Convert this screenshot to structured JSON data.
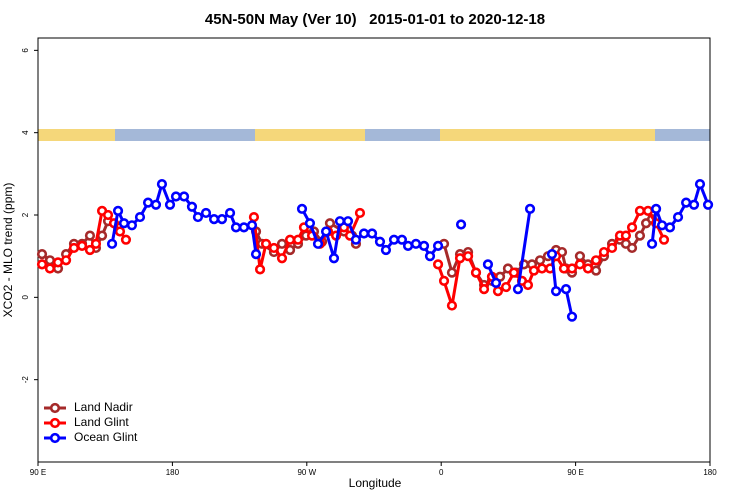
{
  "chart_data": {
    "type": "line",
    "title": "45N-50N May (Ver 10)   2015-01-01 to 2020-12-18",
    "x_label": "Longitude",
    "y_label": "XCO2 - MLO trend (ppm)",
    "xlim": [
      90,
      540
    ],
    "ylim": [
      -4,
      6.3
    ],
    "xticks": [
      {
        "value": 90,
        "label": "90 E"
      },
      180,
      {
        "value": 270,
        "label": "90 W"
      },
      {
        "value": 360,
        "label": "0"
      },
      {
        "value": 450,
        "label": "90 E"
      },
      {
        "value": 540,
        "label": "180"
      }
    ],
    "yticks": [
      -2,
      0,
      2,
      4,
      6
    ],
    "legend": "bottomleft",
    "series": [
      {
        "name": "Land Nadir",
        "color": "#a52a2a",
        "x": [
          92.7,
          98.0,
          103.4,
          108.8,
          114.1,
          119.5,
          124.8,
          128.8,
          132.9,
          136.9,
          143.6,
          null,
          236.0,
          240.0,
          248.0,
          253.4,
          258.8,
          264.1,
          269.5,
          274.8,
          280.2,
          285.5,
          294.9,
          300.3,
          302.9,
          null,
          361.9,
          367.2,
          372.6,
          378.0,
          383.3,
          388.7,
          394.0,
          399.4,
          404.7,
          410.1,
          415.4,
          420.8,
          426.2,
          431.5,
          436.9,
          440.9,
          443.6,
          447.6,
          452.9,
          458.3,
          463.7,
          469.0,
          474.4,
          479.7,
          483.7,
          487.8,
          493.1,
          497.2,
          501.2
        ],
        "values": [
          1.05,
          0.9,
          0.7,
          1.05,
          1.3,
          1.3,
          1.5,
          1.2,
          1.5,
          1.85,
          1.7,
          null,
          1.6,
          1.3,
          1.1,
          1.3,
          1.15,
          1.3,
          1.5,
          1.6,
          1.35,
          1.8,
          1.6,
          1.5,
          1.3,
          null,
          1.3,
          0.6,
          1.05,
          1.1,
          0.6,
          0.3,
          0.4,
          0.5,
          0.7,
          0.6,
          0.8,
          0.8,
          0.9,
          1.0,
          1.15,
          1.1,
          0.7,
          0.6,
          1.0,
          0.8,
          0.65,
          1.0,
          1.3,
          1.4,
          1.3,
          1.2,
          1.5,
          1.8,
          1.9
        ]
      },
      {
        "name": "Land Glint",
        "color": "#ff0000",
        "x": [
          92.7,
          98.0,
          103.4,
          108.8,
          114.1,
          119.5,
          124.8,
          128.8,
          132.9,
          136.9,
          140.9,
          144.9,
          148.9,
          null,
          234.6,
          238.7,
          242.7,
          248.0,
          253.4,
          258.8,
          264.1,
          268.1,
          273.5,
          278.8,
          284.2,
          289.6,
          294.9,
          298.9,
          305.6,
          null,
          357.9,
          361.9,
          367.2,
          372.6,
          378.0,
          383.3,
          388.7,
          394.0,
          398.0,
          403.4,
          408.7,
          414.1,
          418.1,
          422.1,
          427.5,
          432.9,
          436.9,
          442.2,
          447.6,
          452.9,
          458.3,
          463.7,
          469.0,
          474.4,
          479.7,
          483.7,
          487.8,
          493.1,
          498.5,
          503.9,
          509.2
        ],
        "values": [
          0.8,
          0.7,
          0.85,
          0.9,
          1.2,
          1.25,
          1.15,
          1.3,
          2.1,
          2.0,
          1.8,
          1.6,
          1.4,
          null,
          1.95,
          0.68,
          1.3,
          1.2,
          0.95,
          1.4,
          1.4,
          1.7,
          1.5,
          1.3,
          1.6,
          1.5,
          1.7,
          1.5,
          2.05,
          null,
          0.8,
          0.4,
          -0.2,
          0.95,
          1.0,
          0.6,
          0.2,
          0.5,
          0.15,
          0.25,
          0.6,
          0.4,
          0.3,
          0.65,
          0.7,
          0.7,
          1.0,
          0.7,
          0.7,
          0.8,
          0.7,
          0.9,
          1.1,
          1.2,
          1.5,
          1.5,
          1.7,
          2.1,
          2.1,
          1.8,
          1.4
        ]
      },
      {
        "name": "Ocean Glint",
        "color": "#0000ff",
        "x": [
          139.6,
          143.6,
          147.6,
          152.9,
          158.3,
          163.7,
          169.0,
          173.0,
          178.4,
          182.4,
          187.8,
          193.1,
          197.1,
          202.5,
          207.9,
          213.2,
          218.6,
          222.6,
          227.9,
          233.3,
          236.0,
          null,
          266.8,
          272.1,
          277.5,
          282.9,
          288.2,
          292.2,
          297.6,
          302.9,
          308.3,
          313.7,
          319.0,
          323.0,
          328.4,
          333.7,
          337.8,
          343.1,
          348.5,
          352.5,
          357.9,
          null,
          373.3,
          null,
          391.3,
          396.7,
          null,
          411.4,
          419.5,
          null,
          434.2,
          436.9,
          443.6,
          447.6,
          null,
          501.2,
          503.9,
          507.9,
          513.2,
          518.6,
          524.0,
          529.3,
          533.3,
          538.7
        ],
        "values": [
          1.3,
          2.1,
          1.8,
          1.75,
          1.95,
          2.3,
          2.25,
          2.75,
          2.25,
          2.45,
          2.45,
          2.2,
          1.95,
          2.05,
          1.9,
          1.9,
          2.05,
          1.7,
          1.7,
          1.75,
          1.05,
          null,
          2.15,
          1.8,
          1.3,
          1.6,
          0.95,
          1.85,
          1.85,
          1.4,
          1.55,
          1.55,
          1.35,
          1.15,
          1.4,
          1.4,
          1.25,
          1.3,
          1.25,
          1.0,
          1.25,
          null,
          1.77,
          null,
          0.8,
          0.35,
          null,
          0.2,
          2.15,
          null,
          1.05,
          0.15,
          0.2,
          -0.47,
          null,
          1.3,
          2.15,
          1.75,
          1.7,
          1.95,
          2.3,
          2.25,
          2.75,
          2.25
        ]
      }
    ]
  }
}
